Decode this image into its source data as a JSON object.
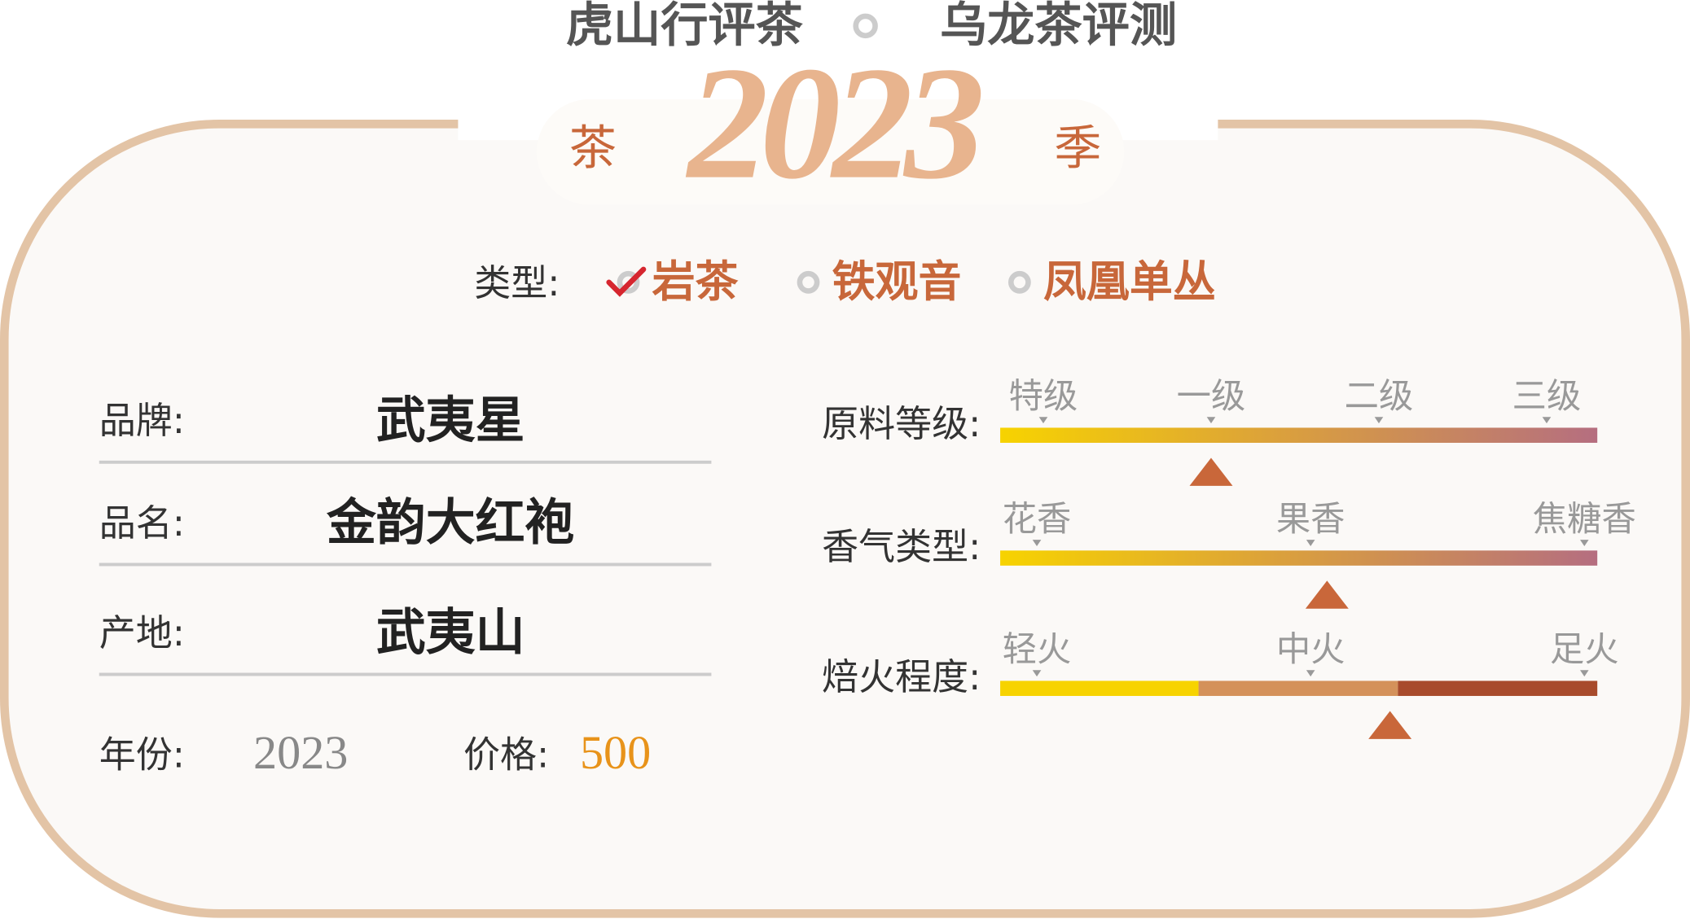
{
  "header": {
    "brand": "虎山行评茶",
    "series": "乌龙茶评测",
    "season_prefix": "茶",
    "year": "2023",
    "season_suffix": "季"
  },
  "type_row": {
    "label": "类型:",
    "options": [
      "岩茶",
      "铁观音",
      "凤凰单丛"
    ],
    "selected": 0
  },
  "fields": [
    {
      "label": "品牌:",
      "value": "武夷星"
    },
    {
      "label": "品名:",
      "value": "金韵大红袍"
    },
    {
      "label": "产地:",
      "value": "武夷山"
    }
  ],
  "year_field": {
    "label": "年份:",
    "value": "2023"
  },
  "price_field": {
    "label": "价格:",
    "value": "500"
  },
  "scales": [
    {
      "label": "原料等级:",
      "ticks": [
        "特级",
        "一级",
        "二级",
        "三级"
      ],
      "marker": 1,
      "style": "gradient"
    },
    {
      "label": "香气类型:",
      "ticks": [
        "花香",
        "果香",
        "焦糖香"
      ],
      "marker": 1.06,
      "style": "gradient"
    },
    {
      "label": "焙火程度:",
      "ticks": [
        "轻火",
        "中火",
        "足火"
      ],
      "marker": 1.29,
      "style": "segments"
    }
  ]
}
